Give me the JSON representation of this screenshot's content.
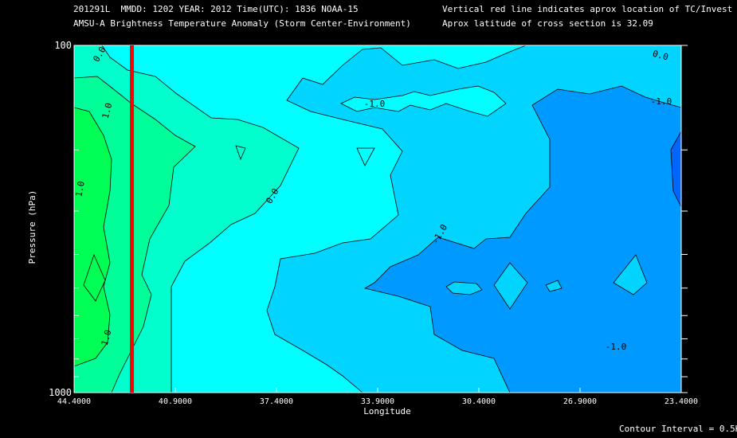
{
  "header": {
    "line1_left": "201291L  MMDD: 1202 YEAR: 2012 Time(UTC): 1836 NOAA-15",
    "line2_left": "AMSU-A Brightness Temperature Anomaly (Storm Center-Environment)",
    "line1_right": "Vertical red line indicates aprox location of TC/Invest",
    "line2_right": "Aprox latitude of cross section is 32.09"
  },
  "footer": {
    "contour_interval": "Contour Interval = 0.5K"
  },
  "chart_data": {
    "type": "contour",
    "title": "AMSU-A Brightness Temperature Anomaly (Storm Center-Environment)",
    "xlabel": "Longitude",
    "ylabel": "Pressure (hPa)",
    "x_ticks": [
      "44.4000",
      "40.9000",
      "37.4000",
      "33.9000",
      "30.4000",
      "26.9000",
      "23.4000"
    ],
    "x_range": [
      44.4,
      23.4
    ],
    "y_range": [
      1000,
      100
    ],
    "y_scale": "log",
    "y_tick_labels": [
      "100",
      "1000"
    ],
    "y_minor_ticks": [
      100,
      200,
      300,
      400,
      500,
      600,
      700,
      800,
      900,
      1000
    ],
    "contour_interval": 0.5,
    "contour_labels": [
      "0.0",
      "1.0",
      "1.0",
      "1.0",
      "0.0",
      "-1.0",
      "0.0",
      "-1.0",
      "-1.0",
      "-1.0"
    ],
    "storm_longitude": 42.4,
    "storm_line_color": "#ff0000",
    "colors": {
      "gt_1_0": "#00ff55",
      "0_5_to_1_0": "#00ff99",
      "0_0_to_0_5": "#00ffcc",
      "m0_5_to_0_0": "#00ffff",
      "m1_0_to_m0_5": "#00d4ff",
      "lt_m1_0": "#0099ff",
      "lt_m1_5": "#0066ff"
    }
  }
}
